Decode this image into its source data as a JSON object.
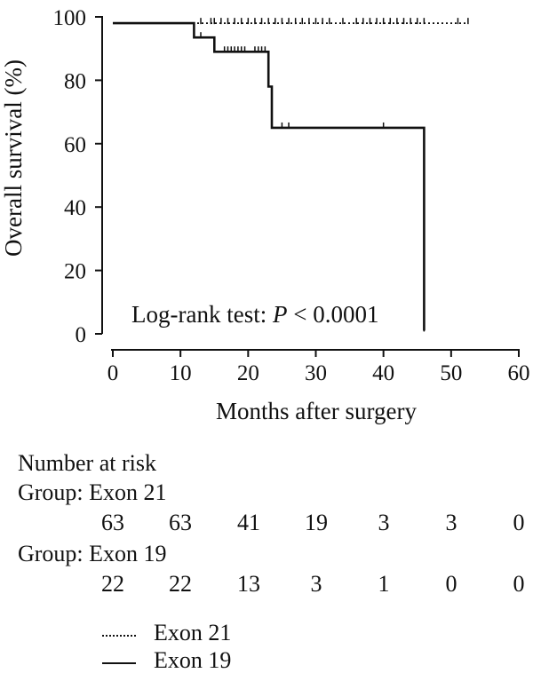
{
  "chart_data": {
    "type": "line",
    "title": "",
    "xlabel": "Months after surgery",
    "ylabel": "Overall survival (%)",
    "xlim": [
      0,
      60
    ],
    "ylim": [
      0,
      100
    ],
    "x_ticks": [
      "0",
      "10",
      "20",
      "30",
      "40",
      "50",
      "60"
    ],
    "y_ticks": [
      "0",
      "20",
      "40",
      "60",
      "80",
      "100"
    ],
    "annotation": {
      "prefix": "Log-rank test: ",
      "p_symbol": "P",
      "suffix": " < 0.0001"
    },
    "series": [
      {
        "name": "Exon 21",
        "style": "dotted",
        "color": "#111111",
        "steps": [
          [
            0,
            98
          ],
          [
            52.5,
            98
          ]
        ],
        "censor_x": [
          13,
          14.5,
          15,
          16,
          17,
          18,
          19,
          20,
          21,
          22,
          23,
          24,
          25,
          26,
          27,
          28,
          29,
          30,
          31,
          32,
          34,
          36,
          37,
          38,
          39,
          40,
          41,
          42,
          43,
          44,
          45,
          46,
          51,
          52.5
        ]
      },
      {
        "name": "Exon 19",
        "style": "solid",
        "color": "#111111",
        "steps": [
          [
            0,
            98
          ],
          [
            12,
            98
          ],
          [
            12,
            93.5
          ],
          [
            15,
            93.5
          ],
          [
            15,
            89
          ],
          [
            23,
            89
          ],
          [
            23,
            78
          ],
          [
            23.5,
            78
          ],
          [
            23.5,
            65
          ],
          [
            46,
            65
          ],
          [
            46,
            1
          ]
        ],
        "censor_x": [
          13,
          16.5,
          17,
          17.5,
          18,
          18.5,
          19,
          19.5,
          21,
          21.5,
          22,
          22.5,
          25,
          26,
          40,
          46
        ]
      }
    ]
  },
  "risk_table": {
    "title": "Number at risk",
    "groups": [
      {
        "label": "Group: Exon 21",
        "values": [
          "63",
          "63",
          "41",
          "19",
          "3",
          "3",
          "0"
        ]
      },
      {
        "label": "Group: Exon 19",
        "values": [
          "22",
          "22",
          "13",
          "3",
          "1",
          "0",
          "0"
        ]
      }
    ]
  },
  "legend": [
    {
      "label": "Exon 21",
      "style": "dotted"
    },
    {
      "label": "Exon 19",
      "style": "solid"
    }
  ]
}
